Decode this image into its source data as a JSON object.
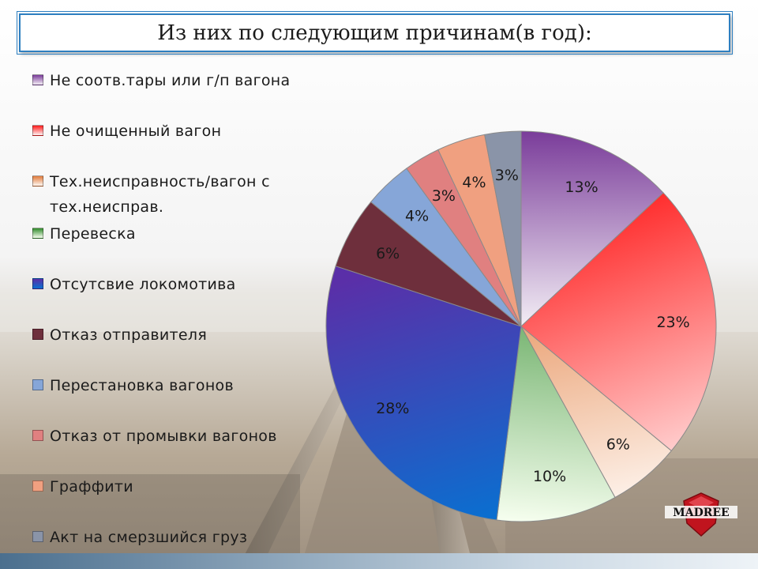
{
  "title": "Из них по следующим причинам(в год):",
  "logo": {
    "text": "MADREE"
  },
  "chart_data": {
    "type": "pie",
    "title": "Из них по следующим причинам(в год):",
    "start_angle_deg": 0,
    "direction": "clockwise",
    "slices": [
      {
        "label": "Не соотв.тары или г/п вагона",
        "value": 13,
        "display": "13%",
        "color": "#7a3c9a",
        "color2": "#f3eef5"
      },
      {
        "label": "Не очищенный вагон",
        "value": 23,
        "display": "23%",
        "color": "#ff1a1a",
        "color2": "#fff3f3"
      },
      {
        "label": "Тех.неисправность/вагон с\nтех.неисправ.",
        "value": 6,
        "display": "6%",
        "color": "#e07a3a",
        "color2": "#fff8f3"
      },
      {
        "label": "Перевеска",
        "value": 10,
        "display": "10%",
        "color": "#2f8a2a",
        "color2": "#f7fff0"
      },
      {
        "label": "Отсутсвие локомотива",
        "value": 28,
        "display": "28%",
        "color": "#5a2fa8",
        "color2": "#0a6fd0"
      },
      {
        "label": "Отказ отправителя",
        "value": 6,
        "display": "6%",
        "color": "#6e2f3c",
        "color2": "#6e2f3c"
      },
      {
        "label": "Перестановка вагонов",
        "value": 4,
        "display": "4%",
        "color": "#86a6d8",
        "color2": "#86a6d8"
      },
      {
        "label": "Отказ от промывки вагонов",
        "value": 3,
        "display": "3%",
        "color": "#e08080",
        "color2": "#e08080"
      },
      {
        "label": "Граффити",
        "value": 4,
        "display": "4%",
        "color": "#f0a080",
        "color2": "#f0a080"
      },
      {
        "label": "Акт на смерзшийся груз",
        "value": 3,
        "display": "3%",
        "color": "#8a94a8",
        "color2": "#8a94a8"
      }
    ],
    "legend_placement": "left",
    "grid": false
  }
}
